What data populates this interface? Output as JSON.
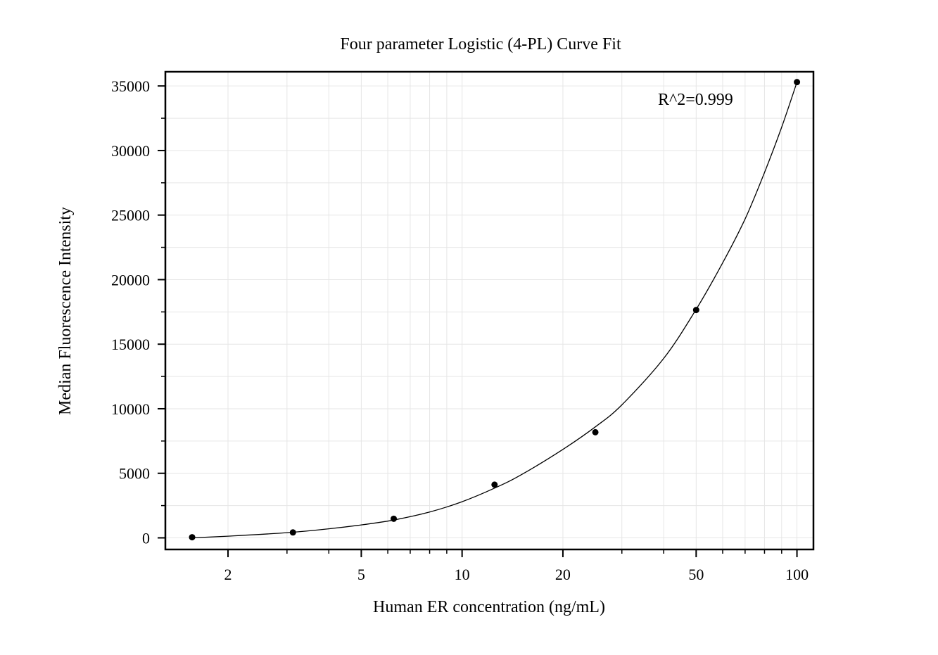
{
  "chart_data": {
    "type": "scatter",
    "title": "Four parameter Logistic (4-PL) Curve Fit",
    "xlabel": "Human ER concentration (ng/mL)",
    "ylabel": "Median Fluorescence Intensity",
    "x_scale": "log",
    "xlim": [
      1.3,
      112
    ],
    "ylim": [
      -900,
      36100
    ],
    "x_ticks": [
      2,
      5,
      10,
      20,
      50,
      100
    ],
    "x_tick_labels": [
      "2",
      "5",
      "10",
      "20",
      "50",
      "100"
    ],
    "y_ticks": [
      0,
      5000,
      10000,
      15000,
      20000,
      25000,
      30000,
      35000
    ],
    "y_tick_labels": [
      "0",
      "5000",
      "10000",
      "15000",
      "20000",
      "25000",
      "30000",
      "35000"
    ],
    "grid": true,
    "annotation": "R^2=0.999",
    "series": [
      {
        "x": [
          1.5625,
          3.125,
          6.25,
          12.5,
          25,
          50,
          100
        ],
        "y": [
          50,
          420,
          1480,
          4120,
          8180,
          17650,
          35300
        ]
      }
    ],
    "fit_curve": {
      "type": "4PL",
      "points_x": [
        1.5625,
        2,
        3,
        4,
        5,
        6.25,
        8,
        10,
        12.5,
        15,
        20,
        25,
        30,
        40,
        50,
        60,
        70,
        80,
        90,
        100
      ],
      "points_y": [
        0,
        130,
        400,
        700,
        1000,
        1380,
        2000,
        2800,
        3850,
        4880,
        6850,
        8600,
        10300,
        13900,
        17700,
        21300,
        24700,
        28300,
        31800,
        35300
      ]
    },
    "colors": {
      "points": "#000000",
      "curve": "#000000",
      "grid": "#e6e6e6",
      "frame": "#000000"
    }
  }
}
